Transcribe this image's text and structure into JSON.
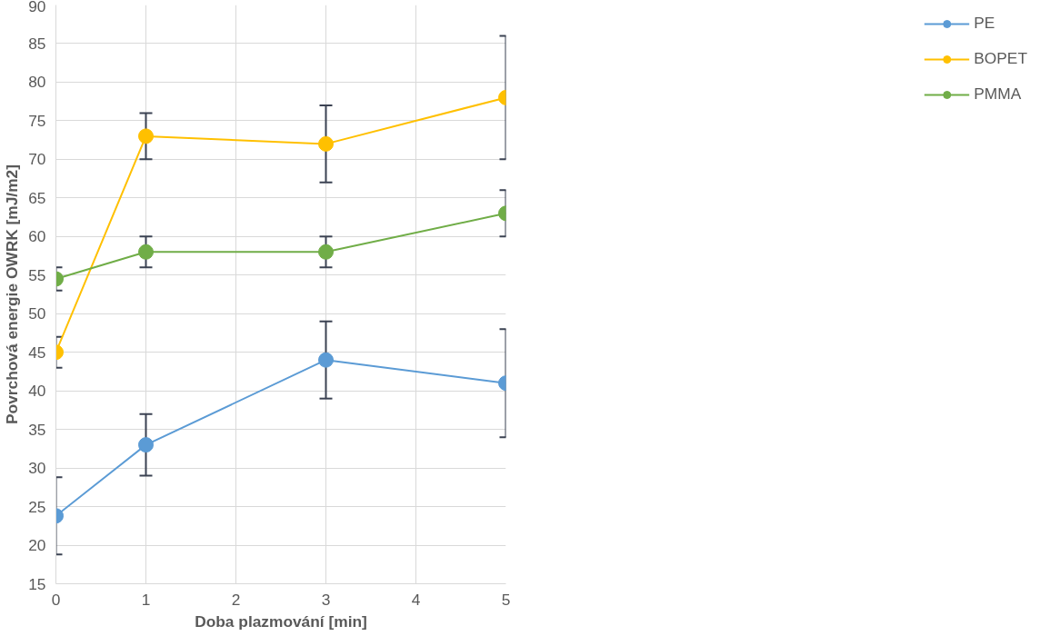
{
  "chart_data": {
    "type": "line",
    "xlabel": "Doba plazmování [min]",
    "ylabel": "Povrchová energie OWRK [mJ/m2]",
    "x": [
      0,
      1,
      3,
      5
    ],
    "xlim": [
      0,
      5
    ],
    "xticks": [
      0,
      1,
      2,
      3,
      4,
      5
    ],
    "ylim": [
      15,
      90
    ],
    "yticks": [
      15,
      20,
      25,
      30,
      35,
      40,
      45,
      50,
      55,
      60,
      65,
      70,
      75,
      80,
      85,
      90
    ],
    "grid": true,
    "legend": "right",
    "marker": "circle",
    "line_style": "solid",
    "series": [
      {
        "name": "PE",
        "color": "#5b9bd5",
        "values": [
          23.8,
          33,
          44,
          41
        ],
        "errors": [
          5,
          4,
          5,
          7
        ]
      },
      {
        "name": "BOPET",
        "color": "#ffc000",
        "values": [
          45,
          73,
          72,
          78
        ],
        "errors": [
          2,
          3,
          5,
          8
        ]
      },
      {
        "name": "PMMA",
        "color": "#70ad47",
        "values": [
          54.5,
          58,
          58,
          63
        ],
        "errors": [
          1.5,
          2,
          2,
          3
        ]
      }
    ]
  }
}
